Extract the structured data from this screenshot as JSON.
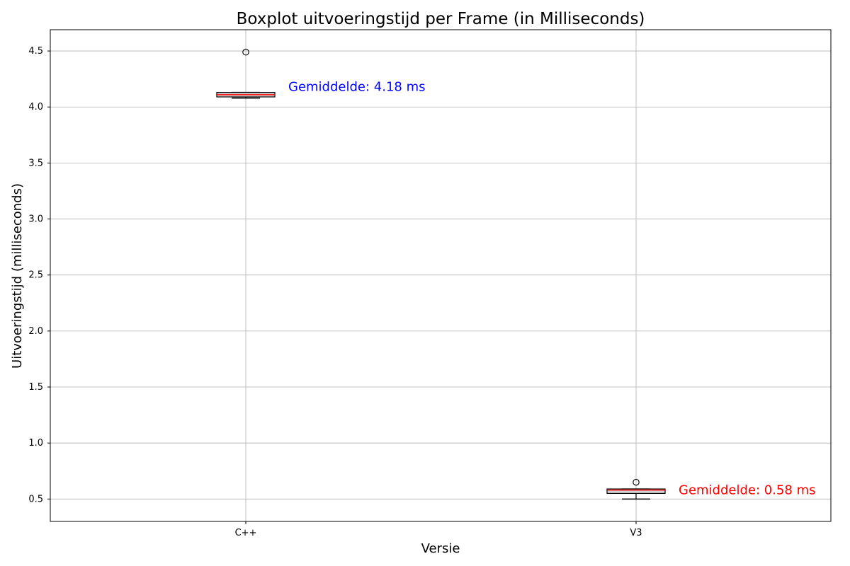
{
  "chart_data": {
    "type": "boxplot",
    "title": "Boxplot uitvoeringstijd per Frame (in Milliseconds)",
    "xlabel": "Versie",
    "ylabel": "Uitvoeringstijd (milliseconds)",
    "categories": [
      "C++",
      "V3"
    ],
    "ylim": [
      0.3,
      4.69
    ],
    "yticks": [
      0.5,
      1.0,
      1.5,
      2.0,
      2.5,
      3.0,
      3.5,
      4.0,
      4.5
    ],
    "ytick_labels": [
      "0.5",
      "1.0",
      "1.5",
      "2.0",
      "2.5",
      "3.0",
      "3.5",
      "4.0",
      "4.5"
    ],
    "grid": true,
    "boxes": [
      {
        "category": "C++",
        "whisker_low": 4.08,
        "q1": 4.09,
        "median": 4.11,
        "q3": 4.13,
        "whisker_high": 4.13,
        "outliers": [
          4.49
        ]
      },
      {
        "category": "V3",
        "whisker_low": 0.5,
        "q1": 0.55,
        "median": 0.58,
        "q3": 0.59,
        "whisker_high": 0.59,
        "outliers": [
          0.65
        ]
      }
    ],
    "annotations": [
      {
        "category": "C++",
        "text": "Gemiddelde: 4.18 ms",
        "y": 4.18,
        "color": "#0000ff"
      },
      {
        "category": "V3",
        "text": "Gemiddelde: 0.58 ms",
        "y": 0.58,
        "color": "#ff0000"
      }
    ],
    "colors": {
      "median": "#ff0000",
      "box_fill": "#d3d3d3",
      "grid": "#b0b0b0",
      "axes": "#000000"
    }
  }
}
